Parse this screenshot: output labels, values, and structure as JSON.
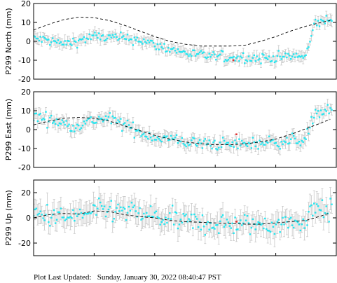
{
  "footer": {
    "prefix": "Plot Last Updated:   ",
    "timestamp": "Sunday, January 30, 2022 08:40:47 PST"
  },
  "colors": {
    "points": "#22e6f0",
    "errorbars": "#c8c8c8",
    "outlier": "#e03030",
    "model": "#000000",
    "frame": "#000000"
  },
  "chart_data": [
    {
      "type": "scatter",
      "ylabel": "P299 North (mm)",
      "ylim": [
        -20,
        20
      ],
      "yticks": [
        -20,
        -10,
        0,
        10,
        20
      ],
      "xlim": [
        0,
        1
      ],
      "xticks": [
        0.2,
        0.4,
        0.6,
        0.8
      ],
      "grid": false,
      "observation_series": [
        {
          "x": 0.0,
          "y": 1.5
        },
        {
          "x": 0.05,
          "y": 0.5
        },
        {
          "x": 0.1,
          "y": -1.5
        },
        {
          "x": 0.15,
          "y": 0.5
        },
        {
          "x": 0.2,
          "y": 2.5
        },
        {
          "x": 0.25,
          "y": 2.0
        },
        {
          "x": 0.3,
          "y": 1.5
        },
        {
          "x": 0.35,
          "y": 1.0
        },
        {
          "x": 0.4,
          "y": -2.0
        },
        {
          "x": 0.45,
          "y": -4.0
        },
        {
          "x": 0.5,
          "y": -6.0
        },
        {
          "x": 0.55,
          "y": -7.5
        },
        {
          "x": 0.6,
          "y": -8.0
        },
        {
          "x": 0.65,
          "y": -8.5
        },
        {
          "x": 0.7,
          "y": -8.5
        },
        {
          "x": 0.75,
          "y": -9.0
        },
        {
          "x": 0.8,
          "y": -8.5
        },
        {
          "x": 0.85,
          "y": -8.0
        },
        {
          "x": 0.9,
          "y": -8.0
        },
        {
          "x": 0.93,
          "y": 10.0
        },
        {
          "x": 0.97,
          "y": 11.0
        }
      ],
      "error_mm": 2.5,
      "outliers": [
        {
          "x": 0.66,
          "y": -10.0
        }
      ],
      "model_series": [
        {
          "x": 0.0,
          "y": 6.0
        },
        {
          "x": 0.05,
          "y": 9.0
        },
        {
          "x": 0.1,
          "y": 11.5
        },
        {
          "x": 0.15,
          "y": 12.8
        },
        {
          "x": 0.2,
          "y": 12.5
        },
        {
          "x": 0.25,
          "y": 11.0
        },
        {
          "x": 0.3,
          "y": 8.5
        },
        {
          "x": 0.35,
          "y": 5.5
        },
        {
          "x": 0.4,
          "y": 2.5
        },
        {
          "x": 0.45,
          "y": 0.0
        },
        {
          "x": 0.5,
          "y": -1.5
        },
        {
          "x": 0.55,
          "y": -2.5
        },
        {
          "x": 0.6,
          "y": -2.5
        },
        {
          "x": 0.65,
          "y": -2.5
        },
        {
          "x": 0.7,
          "y": -2.0
        },
        {
          "x": 0.75,
          "y": 0.0
        },
        {
          "x": 0.8,
          "y": 2.5
        },
        {
          "x": 0.85,
          "y": 5.5
        },
        {
          "x": 0.9,
          "y": 8.0
        },
        {
          "x": 0.95,
          "y": 10.0
        },
        {
          "x": 0.98,
          "y": 11.0
        }
      ]
    },
    {
      "type": "scatter",
      "ylabel": "P299 East (mm)",
      "ylim": [
        -20,
        20
      ],
      "yticks": [
        -20,
        -10,
        0,
        10,
        20
      ],
      "xlim": [
        0,
        1
      ],
      "xticks": [
        0.2,
        0.4,
        0.6,
        0.8
      ],
      "grid": false,
      "observation_series": [
        {
          "x": 0.0,
          "y": 7.0
        },
        {
          "x": 0.04,
          "y": 6.0
        },
        {
          "x": 0.08,
          "y": 4.0
        },
        {
          "x": 0.12,
          "y": 2.0
        },
        {
          "x": 0.16,
          "y": 3.0
        },
        {
          "x": 0.2,
          "y": 5.0
        },
        {
          "x": 0.24,
          "y": 6.0
        },
        {
          "x": 0.28,
          "y": 4.0
        },
        {
          "x": 0.32,
          "y": 1.0
        },
        {
          "x": 0.36,
          "y": -2.0
        },
        {
          "x": 0.4,
          "y": -4.0
        },
        {
          "x": 0.45,
          "y": -5.0
        },
        {
          "x": 0.5,
          "y": -6.5
        },
        {
          "x": 0.55,
          "y": -7.5
        },
        {
          "x": 0.6,
          "y": -7.5
        },
        {
          "x": 0.65,
          "y": -8.0
        },
        {
          "x": 0.7,
          "y": -7.5
        },
        {
          "x": 0.75,
          "y": -7.0
        },
        {
          "x": 0.8,
          "y": -6.5
        },
        {
          "x": 0.85,
          "y": -6.0
        },
        {
          "x": 0.9,
          "y": -5.0
        },
        {
          "x": 0.93,
          "y": 9.0
        },
        {
          "x": 0.97,
          "y": 9.5
        }
      ],
      "error_mm": 3,
      "outliers": [
        {
          "x": 0.67,
          "y": -2.5
        }
      ],
      "model_series": [
        {
          "x": 0.0,
          "y": 2.5
        },
        {
          "x": 0.05,
          "y": 4.5
        },
        {
          "x": 0.1,
          "y": 6.0
        },
        {
          "x": 0.15,
          "y": 6.5
        },
        {
          "x": 0.2,
          "y": 6.0
        },
        {
          "x": 0.25,
          "y": 4.5
        },
        {
          "x": 0.3,
          "y": 2.0
        },
        {
          "x": 0.35,
          "y": -0.5
        },
        {
          "x": 0.4,
          "y": -3.0
        },
        {
          "x": 0.45,
          "y": -5.0
        },
        {
          "x": 0.5,
          "y": -6.5
        },
        {
          "x": 0.55,
          "y": -7.5
        },
        {
          "x": 0.6,
          "y": -8.0
        },
        {
          "x": 0.65,
          "y": -8.0
        },
        {
          "x": 0.7,
          "y": -7.5
        },
        {
          "x": 0.75,
          "y": -6.5
        },
        {
          "x": 0.8,
          "y": -5.0
        },
        {
          "x": 0.85,
          "y": -2.5
        },
        {
          "x": 0.9,
          "y": 0.5
        },
        {
          "x": 0.95,
          "y": 3.5
        },
        {
          "x": 0.98,
          "y": 5.5
        }
      ]
    },
    {
      "type": "scatter",
      "ylabel": "P299 Up (mm)",
      "ylim": [
        -30,
        30
      ],
      "yticks": [
        -20,
        0,
        20
      ],
      "xlim": [
        0,
        1
      ],
      "xticks": [
        0.2,
        0.4,
        0.6,
        0.8
      ],
      "grid": false,
      "observation_series": [
        {
          "x": 0.0,
          "y": 3.0
        },
        {
          "x": 0.05,
          "y": 2.0
        },
        {
          "x": 0.1,
          "y": -1.0
        },
        {
          "x": 0.15,
          "y": 2.0
        },
        {
          "x": 0.2,
          "y": 4.0
        },
        {
          "x": 0.25,
          "y": 6.0
        },
        {
          "x": 0.3,
          "y": 5.0
        },
        {
          "x": 0.35,
          "y": 3.0
        },
        {
          "x": 0.4,
          "y": 1.0
        },
        {
          "x": 0.45,
          "y": -2.0
        },
        {
          "x": 0.5,
          "y": -3.0
        },
        {
          "x": 0.55,
          "y": -4.0
        },
        {
          "x": 0.6,
          "y": -5.0
        },
        {
          "x": 0.65,
          "y": -5.0
        },
        {
          "x": 0.7,
          "y": -6.0
        },
        {
          "x": 0.75,
          "y": -5.0
        },
        {
          "x": 0.8,
          "y": -5.0
        },
        {
          "x": 0.85,
          "y": -4.0
        },
        {
          "x": 0.9,
          "y": -3.0
        },
        {
          "x": 0.93,
          "y": 12.0
        },
        {
          "x": 0.97,
          "y": 5.0
        }
      ],
      "error_mm": 8,
      "outliers": [
        {
          "x": 0.67,
          "y": -3.0
        }
      ],
      "model_series": [
        {
          "x": 0.0,
          "y": 0.0
        },
        {
          "x": 0.05,
          "y": 2.5
        },
        {
          "x": 0.1,
          "y": 3.5
        },
        {
          "x": 0.15,
          "y": 3.0
        },
        {
          "x": 0.2,
          "y": 5.5
        },
        {
          "x": 0.25,
          "y": 5.0
        },
        {
          "x": 0.3,
          "y": 2.5
        },
        {
          "x": 0.35,
          "y": 1.0
        },
        {
          "x": 0.4,
          "y": 0.0
        },
        {
          "x": 0.45,
          "y": -2.0
        },
        {
          "x": 0.5,
          "y": -3.0
        },
        {
          "x": 0.55,
          "y": -3.5
        },
        {
          "x": 0.6,
          "y": -4.0
        },
        {
          "x": 0.65,
          "y": -4.5
        },
        {
          "x": 0.7,
          "y": -5.0
        },
        {
          "x": 0.75,
          "y": -5.0
        },
        {
          "x": 0.8,
          "y": -4.0
        },
        {
          "x": 0.85,
          "y": -3.0
        },
        {
          "x": 0.9,
          "y": -2.0
        },
        {
          "x": 0.95,
          "y": 1.5
        },
        {
          "x": 0.98,
          "y": 4.0
        }
      ]
    }
  ]
}
